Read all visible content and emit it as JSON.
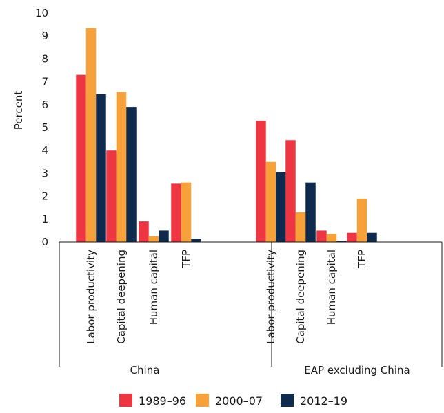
{
  "chart_data": {
    "type": "bar",
    "ylabel": "Percent",
    "xlabel": "",
    "ylim": [
      0,
      10
    ],
    "yticks": [
      0,
      1,
      2,
      3,
      4,
      5,
      6,
      7,
      8,
      9,
      10
    ],
    "grid": false,
    "legend_position": "bottom",
    "groups": [
      {
        "name": "China",
        "categories": [
          "Labor productivity",
          "Capital deepening",
          "Human capital",
          "TFP"
        ]
      },
      {
        "name": "EAP excluding China",
        "categories": [
          "Labor productivity",
          "Capital deepening",
          "Human capital",
          "TFP"
        ]
      }
    ],
    "series": [
      {
        "name": "1989–96",
        "color": "#ee3542",
        "values": [
          7.3,
          4.0,
          0.9,
          2.55,
          5.3,
          4.45,
          0.5,
          0.4
        ]
      },
      {
        "name": "2000–07",
        "color": "#f7a13a",
        "values": [
          9.35,
          6.55,
          0.25,
          2.6,
          3.5,
          1.3,
          0.35,
          1.9
        ]
      },
      {
        "name": "2012–19",
        "color": "#0e2a4d",
        "values": [
          6.45,
          5.9,
          0.5,
          0.15,
          3.05,
          2.6,
          0.05,
          0.4
        ]
      }
    ]
  }
}
